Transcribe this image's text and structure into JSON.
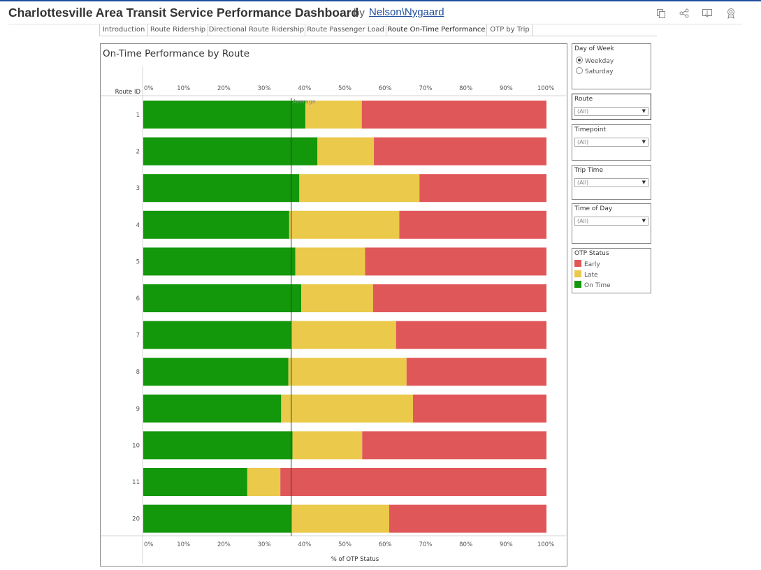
{
  "header": {
    "title": "Charlottesville Area Transit Service Performance Dashboard",
    "by": "by",
    "author": "Nelson\\Nygaard",
    "icons": [
      "copy-icon",
      "share-icon",
      "download-icon",
      "favorite-icon"
    ]
  },
  "tabs": [
    {
      "label": "Introduction",
      "active": false
    },
    {
      "label": "Route Ridership",
      "active": false
    },
    {
      "label": "Directional Route Ridership",
      "active": false
    },
    {
      "label": "Route Passenger Load",
      "active": false
    },
    {
      "label": "Route On-Time Performance",
      "active": true
    },
    {
      "label": "OTP by Trip",
      "active": false
    }
  ],
  "filters": {
    "day_of_week": {
      "title": "Day of Week",
      "options": [
        "Weekday",
        "Saturday"
      ],
      "selected": "Weekday"
    },
    "route": {
      "title": "Route",
      "value": "(All)"
    },
    "timepoint": {
      "title": "Timepoint",
      "value": "(All)"
    },
    "trip_time": {
      "title": "Trip Time",
      "value": "(All)"
    },
    "time_of_day": {
      "title": "Time of Day",
      "value": "(All)"
    }
  },
  "legend": {
    "title": "OTP Status",
    "items": [
      {
        "label": "Early",
        "color": "#e05759"
      },
      {
        "label": "Late",
        "color": "#ebc94a"
      },
      {
        "label": "On Time",
        "color": "#13970b"
      }
    ]
  },
  "chart_data": {
    "type": "bar",
    "orientation": "horizontal",
    "stacked": true,
    "title": "On-Time Performance by Route",
    "ylabel": "Route ID",
    "xlabel": "% of OTP Status",
    "xlim": [
      0,
      100
    ],
    "x_ticks": [
      "0%",
      "10%",
      "20%",
      "30%",
      "40%",
      "50%",
      "60%",
      "70%",
      "80%",
      "90%",
      "100%"
    ],
    "categories": [
      "1",
      "2",
      "3",
      "4",
      "5",
      "6",
      "7",
      "8",
      "9",
      "10",
      "11",
      "20"
    ],
    "series": [
      {
        "name": "On Time",
        "color": "#13970b",
        "values": [
          40.2,
          43.2,
          38.7,
          36.2,
          37.7,
          39.2,
          36.7,
          36.0,
          34.2,
          37.0,
          25.8,
          36.7
        ]
      },
      {
        "name": "Late",
        "color": "#ebc94a",
        "values": [
          14.0,
          14.0,
          29.8,
          27.3,
          17.3,
          17.8,
          26.0,
          29.3,
          32.7,
          17.3,
          8.2,
          24.3
        ]
      },
      {
        "name": "Early",
        "color": "#e05759",
        "values": [
          45.8,
          42.8,
          31.5,
          36.5,
          45.0,
          43.0,
          37.3,
          34.7,
          33.1,
          45.7,
          66.0,
          39.0
        ]
      }
    ],
    "reference_line": {
      "label": "Average",
      "value": 36.7
    },
    "legend": "right",
    "grid": false
  }
}
